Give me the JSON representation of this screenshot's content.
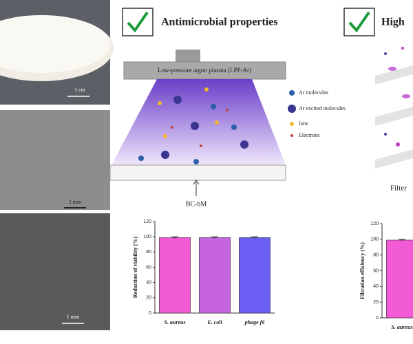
{
  "panels": {
    "photo_scale": "1 cm",
    "sem_scale_1": "2 mm",
    "sem_scale_2": "1 mm"
  },
  "sections": [
    {
      "title": "Antimicrobial properties"
    },
    {
      "title": "High"
    }
  ],
  "diagram": {
    "plasma_label": "Low-pressure argon plasma (LPP-Ar)",
    "membrane_label": "BC-bM",
    "legend": [
      "Ar molecules",
      "Ar excited molecules",
      "Ions",
      "Electrons"
    ]
  },
  "filter_label": "Filter",
  "chart_data": [
    {
      "type": "bar",
      "ylabel": "Reduction of viability (%)",
      "categories": [
        "S. aureus",
        "E. coli",
        "phage f6"
      ],
      "values": [
        99,
        99,
        99
      ],
      "errors": [
        1,
        1,
        1
      ],
      "colors": [
        "#f25ad6",
        "#c563e0",
        "#6b5ef2"
      ],
      "ylim": [
        0,
        120
      ],
      "yticks": [
        0,
        20,
        40,
        60,
        80,
        100,
        120
      ]
    },
    {
      "type": "bar",
      "ylabel": "Filtration efficiency (%)",
      "categories": [
        "S. aureus"
      ],
      "values": [
        99
      ],
      "errors": [
        1
      ],
      "colors": [
        "#f25ad6"
      ],
      "ylim": [
        0,
        120
      ],
      "yticks": [
        0,
        20,
        40,
        60,
        80,
        100,
        120
      ]
    }
  ]
}
